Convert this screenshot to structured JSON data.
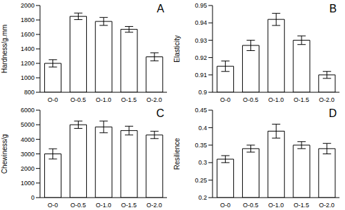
{
  "chart_data": [
    {
      "type": "bar",
      "title": "A",
      "y_label": "Hardness/g.mm",
      "categories": [
        "O-0",
        "O-0.5",
        "O-1.0",
        "O-1.5",
        "O-2.0"
      ],
      "values": [
        1200,
        1850,
        1780,
        1670,
        1290
      ],
      "errors": [
        50,
        45,
        55,
        40,
        55
      ],
      "color": "#ffffff",
      "ylim": [
        800,
        2000
      ],
      "yticks": [
        800,
        1000,
        1200,
        1400,
        1600,
        1800,
        2000
      ],
      "grid": false
    },
    {
      "type": "bar",
      "title": "B",
      "y_label": "Elasticity",
      "categories": [
        "O-0",
        "O-0.5",
        "O-1.0",
        "O-1.5",
        "O-2.0"
      ],
      "values": [
        0.915,
        0.927,
        0.942,
        0.93,
        0.91
      ],
      "errors": [
        0.003,
        0.003,
        0.0035,
        0.0025,
        0.002
      ],
      "color": "#ffffff",
      "ylim": [
        0.9,
        0.95
      ],
      "yticks": [
        0.9,
        0.91,
        0.92,
        0.93,
        0.94,
        0.95
      ],
      "grid": false
    },
    {
      "type": "bar",
      "title": "C",
      "y_label": "Chewiness/g",
      "categories": [
        "O-0",
        "O-0.5",
        "O-1.0",
        "O-1.5",
        "O-2.0"
      ],
      "values": [
        3000,
        5000,
        4850,
        4600,
        4300
      ],
      "errors": [
        350,
        250,
        400,
        300,
        250
      ],
      "color": "#ffffff",
      "ylim": [
        0,
        6000
      ],
      "yticks": [
        0,
        1000,
        2000,
        3000,
        4000,
        5000,
        6000
      ],
      "grid": false
    },
    {
      "type": "bar",
      "title": "D",
      "y_label": "Resilience",
      "categories": [
        "O-0",
        "O-0.5",
        "O-1.0",
        "O-1.5",
        "O-2.0"
      ],
      "values": [
        0.31,
        0.34,
        0.39,
        0.35,
        0.34
      ],
      "errors": [
        0.01,
        0.01,
        0.02,
        0.01,
        0.015
      ],
      "color": "#ffffff",
      "ylim": [
        0.2,
        0.45
      ],
      "yticks": [
        0.2,
        0.25,
        0.3,
        0.35,
        0.4,
        0.45
      ],
      "grid": false
    }
  ]
}
